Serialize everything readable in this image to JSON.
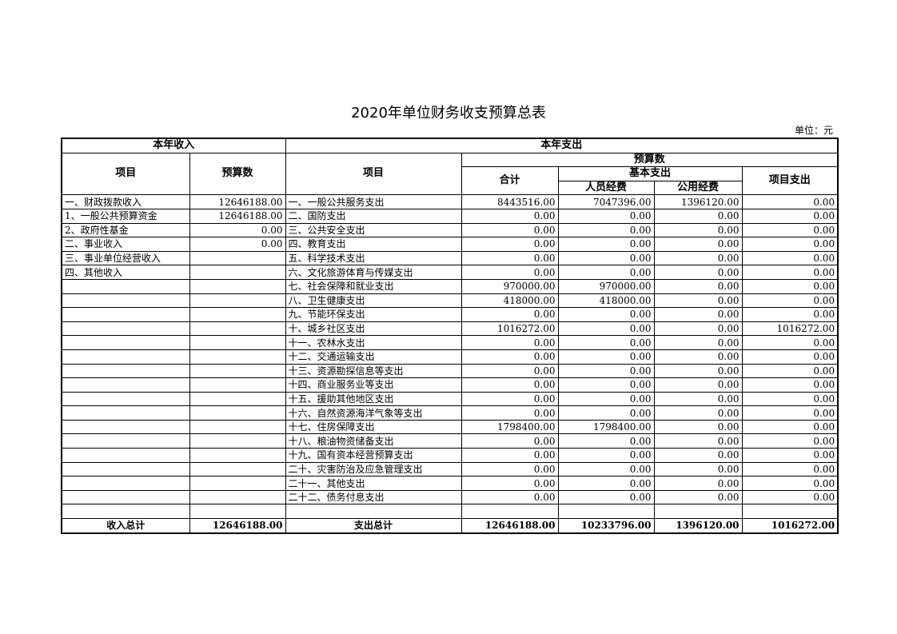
{
  "title": "2020年单位财务收支预算总表",
  "unit": "单位：元",
  "headers": {
    "income_group": "本年收入",
    "expense_group": "本年支出",
    "income_item": "项目",
    "income_budget": "预算数",
    "expense_item": "项目",
    "expense_budget": "预算数",
    "total": "合计",
    "basic": "基本支出",
    "personnel": "人员经费",
    "public": "公用经费",
    "project": "项目支出"
  },
  "rows": [
    [
      "一、财政拨款收入",
      "12646188.00",
      "一、一般公共服务支出",
      "8443516.00",
      "7047396.00",
      "1396120.00",
      "0.00"
    ],
    [
      "1、一般公共预算资金",
      "12646188.00",
      "二、国防支出",
      "0.00",
      "0.00",
      "0.00",
      "0.00"
    ],
    [
      "2、政府性基金",
      "0.00",
      "三、公共安全支出",
      "0.00",
      "0.00",
      "0.00",
      "0.00"
    ],
    [
      "二、事业收入",
      "0.00",
      "四、教育支出",
      "0.00",
      "0.00",
      "0.00",
      "0.00"
    ],
    [
      "三、事业单位经营收入",
      "",
      "五、科学技术支出",
      "0.00",
      "0.00",
      "0.00",
      "0.00"
    ],
    [
      "四、其他收入",
      "",
      "六、文化旅游体育与传媒支出",
      "0.00",
      "0.00",
      "0.00",
      "0.00"
    ],
    [
      "",
      "",
      "七、社会保障和就业支出",
      "970000.00",
      "970000.00",
      "0.00",
      "0.00"
    ],
    [
      "",
      "",
      "八、卫生健康支出",
      "418000.00",
      "418000.00",
      "0.00",
      "0.00"
    ],
    [
      "",
      "",
      "九、节能环保支出",
      "0.00",
      "0.00",
      "0.00",
      "0.00"
    ],
    [
      "",
      "",
      "十、城乡社区支出",
      "1016272.00",
      "0.00",
      "0.00",
      "1016272.00"
    ],
    [
      "",
      "",
      "十一、农林水支出",
      "0.00",
      "0.00",
      "0.00",
      "0.00"
    ],
    [
      "",
      "",
      "十二、交通运输支出",
      "0.00",
      "0.00",
      "0.00",
      "0.00"
    ],
    [
      "",
      "",
      "十三、资源勘探信息等支出",
      "0.00",
      "0.00",
      "0.00",
      "0.00"
    ],
    [
      "",
      "",
      "十四、商业服务业等支出",
      "0.00",
      "0.00",
      "0.00",
      "0.00"
    ],
    [
      "",
      "",
      "十五、援助其他地区支出",
      "0.00",
      "0.00",
      "0.00",
      "0.00"
    ],
    [
      "",
      "",
      "十六、自然资源海洋气象等支出",
      "0.00",
      "0.00",
      "0.00",
      "0.00"
    ],
    [
      "",
      "",
      "十七、住房保障支出",
      "1798400.00",
      "1798400.00",
      "0.00",
      "0.00"
    ],
    [
      "",
      "",
      "十八、粮油物资储备支出",
      "0.00",
      "0.00",
      "0.00",
      "0.00"
    ],
    [
      "",
      "",
      "十九、国有资本经营预算支出",
      "0.00",
      "0.00",
      "0.00",
      "0.00"
    ],
    [
      "",
      "",
      "二十、灾害防治及应急管理支出",
      "0.00",
      "0.00",
      "0.00",
      "0.00"
    ],
    [
      "",
      "",
      "二十一、其他支出",
      "0.00",
      "0.00",
      "0.00",
      "0.00"
    ],
    [
      "",
      "",
      "二十二、债务付息支出",
      "0.00",
      "0.00",
      "0.00",
      "0.00"
    ],
    [
      "",
      "",
      "",
      "",
      "",
      "",
      ""
    ]
  ],
  "totals": [
    "收入总计",
    "12646188.00",
    "支出总计",
    "12646188.00",
    "10233796.00",
    "1396120.00",
    "1016272.00"
  ]
}
